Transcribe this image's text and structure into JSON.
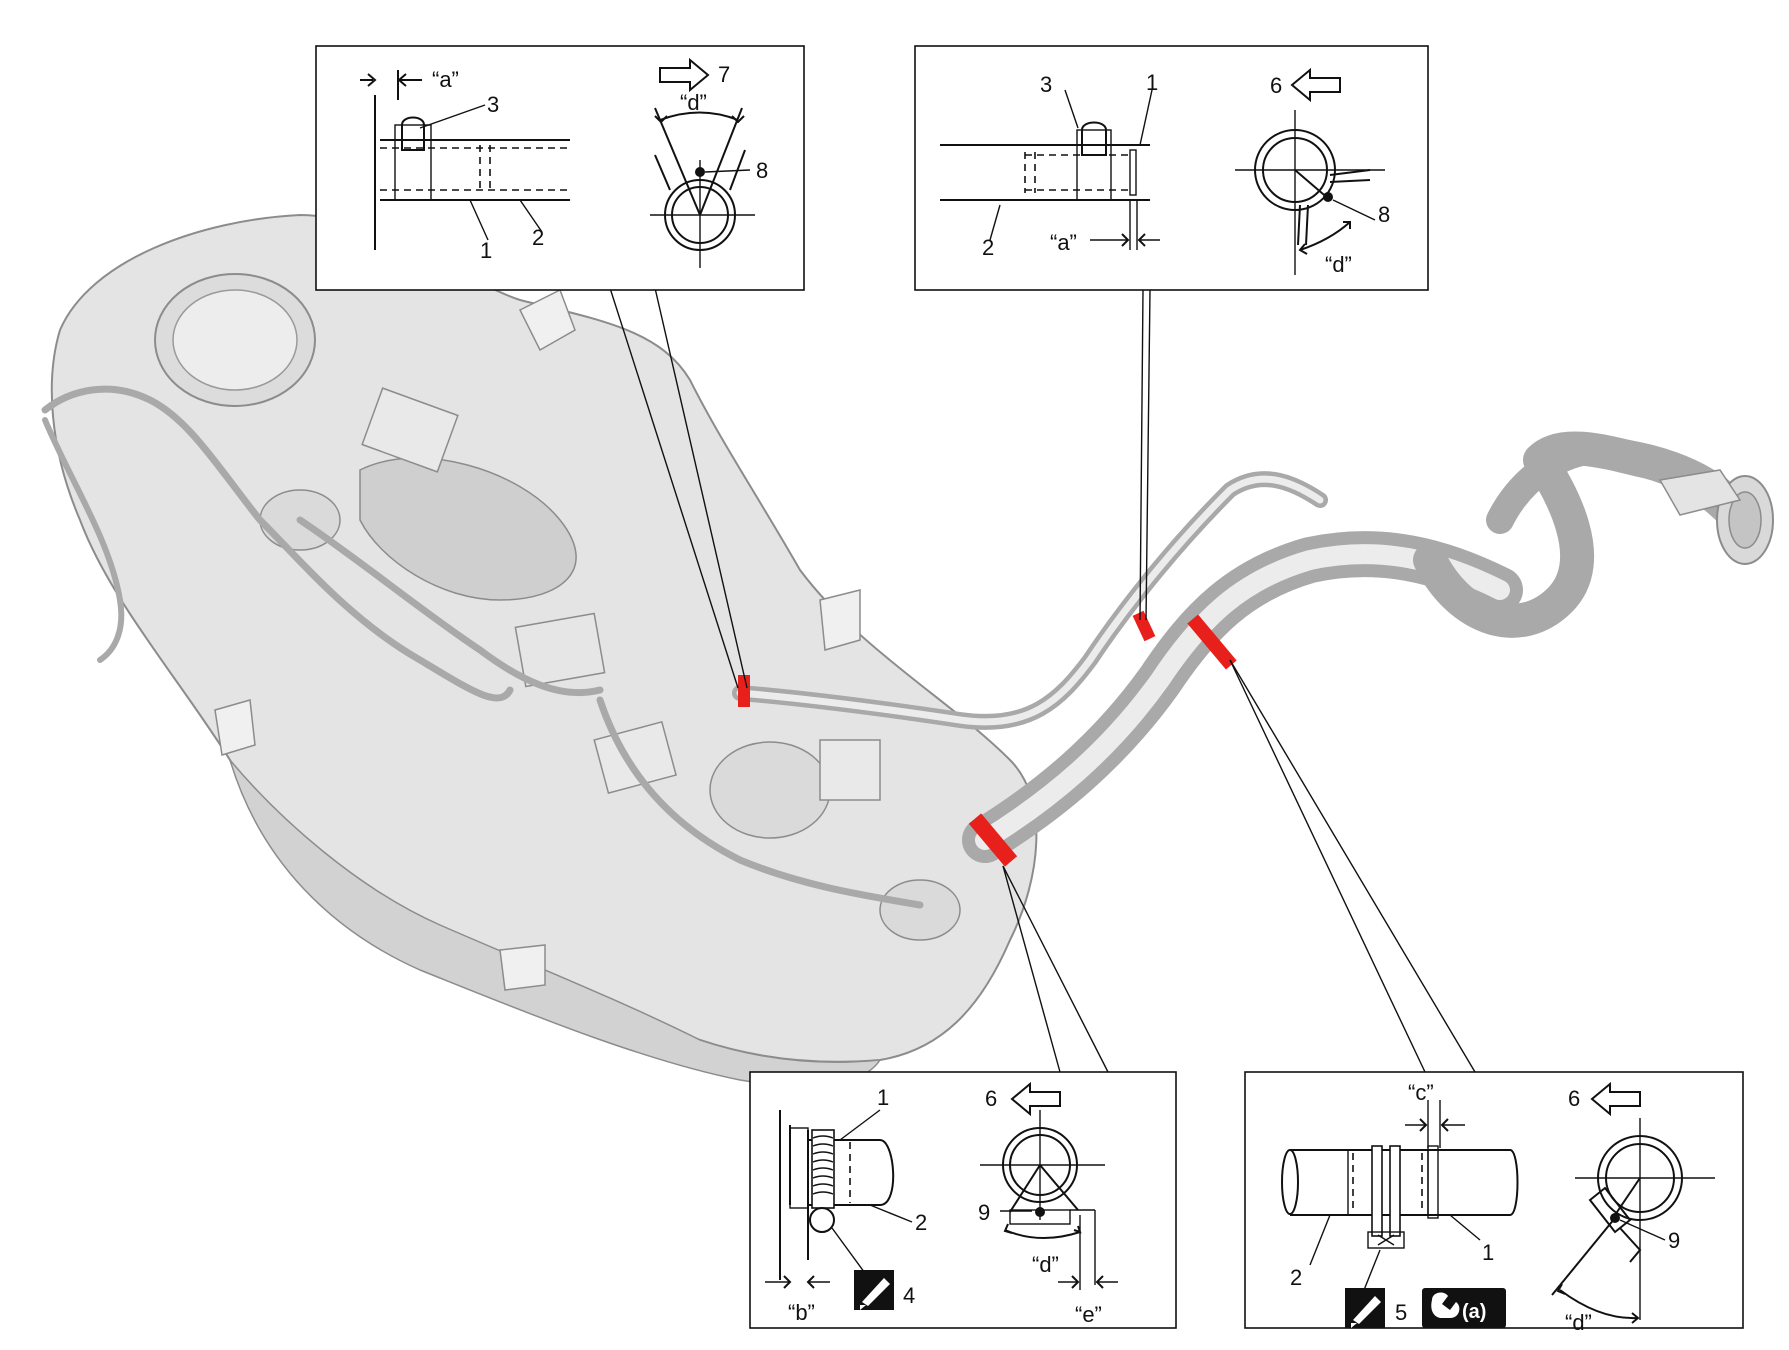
{
  "diagram": {
    "topLeftDetail": {
      "dimA": "“a”",
      "dimD": "“d”",
      "label1": "1",
      "label2": "2",
      "label3": "3",
      "label7": "7",
      "label8": "8"
    },
    "topRightDetail": {
      "dimA": "“a”",
      "dimD": "“d”",
      "label1": "1",
      "label2": "2",
      "label3": "3",
      "label6": "6",
      "label8": "8"
    },
    "bottomLeftDetail": {
      "dimB": "“b”",
      "dimD": "“d”",
      "dimE": "“e”",
      "label1": "1",
      "label2": "2",
      "label4": "4",
      "label6": "6",
      "label9": "9"
    },
    "bottomRightDetail": {
      "dimC": "“c”",
      "dimD": "“d”",
      "label1": "1",
      "label2": "2",
      "label5": "5",
      "label6": "6",
      "label9": "9",
      "torqueRef": "(a)"
    },
    "colors": {
      "clampHighlight": "#e8201c",
      "tankShade": "#e4e4e4",
      "outline": "#111111"
    },
    "icons": [
      "arrow-icon",
      "grease-icon",
      "torque-wrench-icon"
    ]
  }
}
